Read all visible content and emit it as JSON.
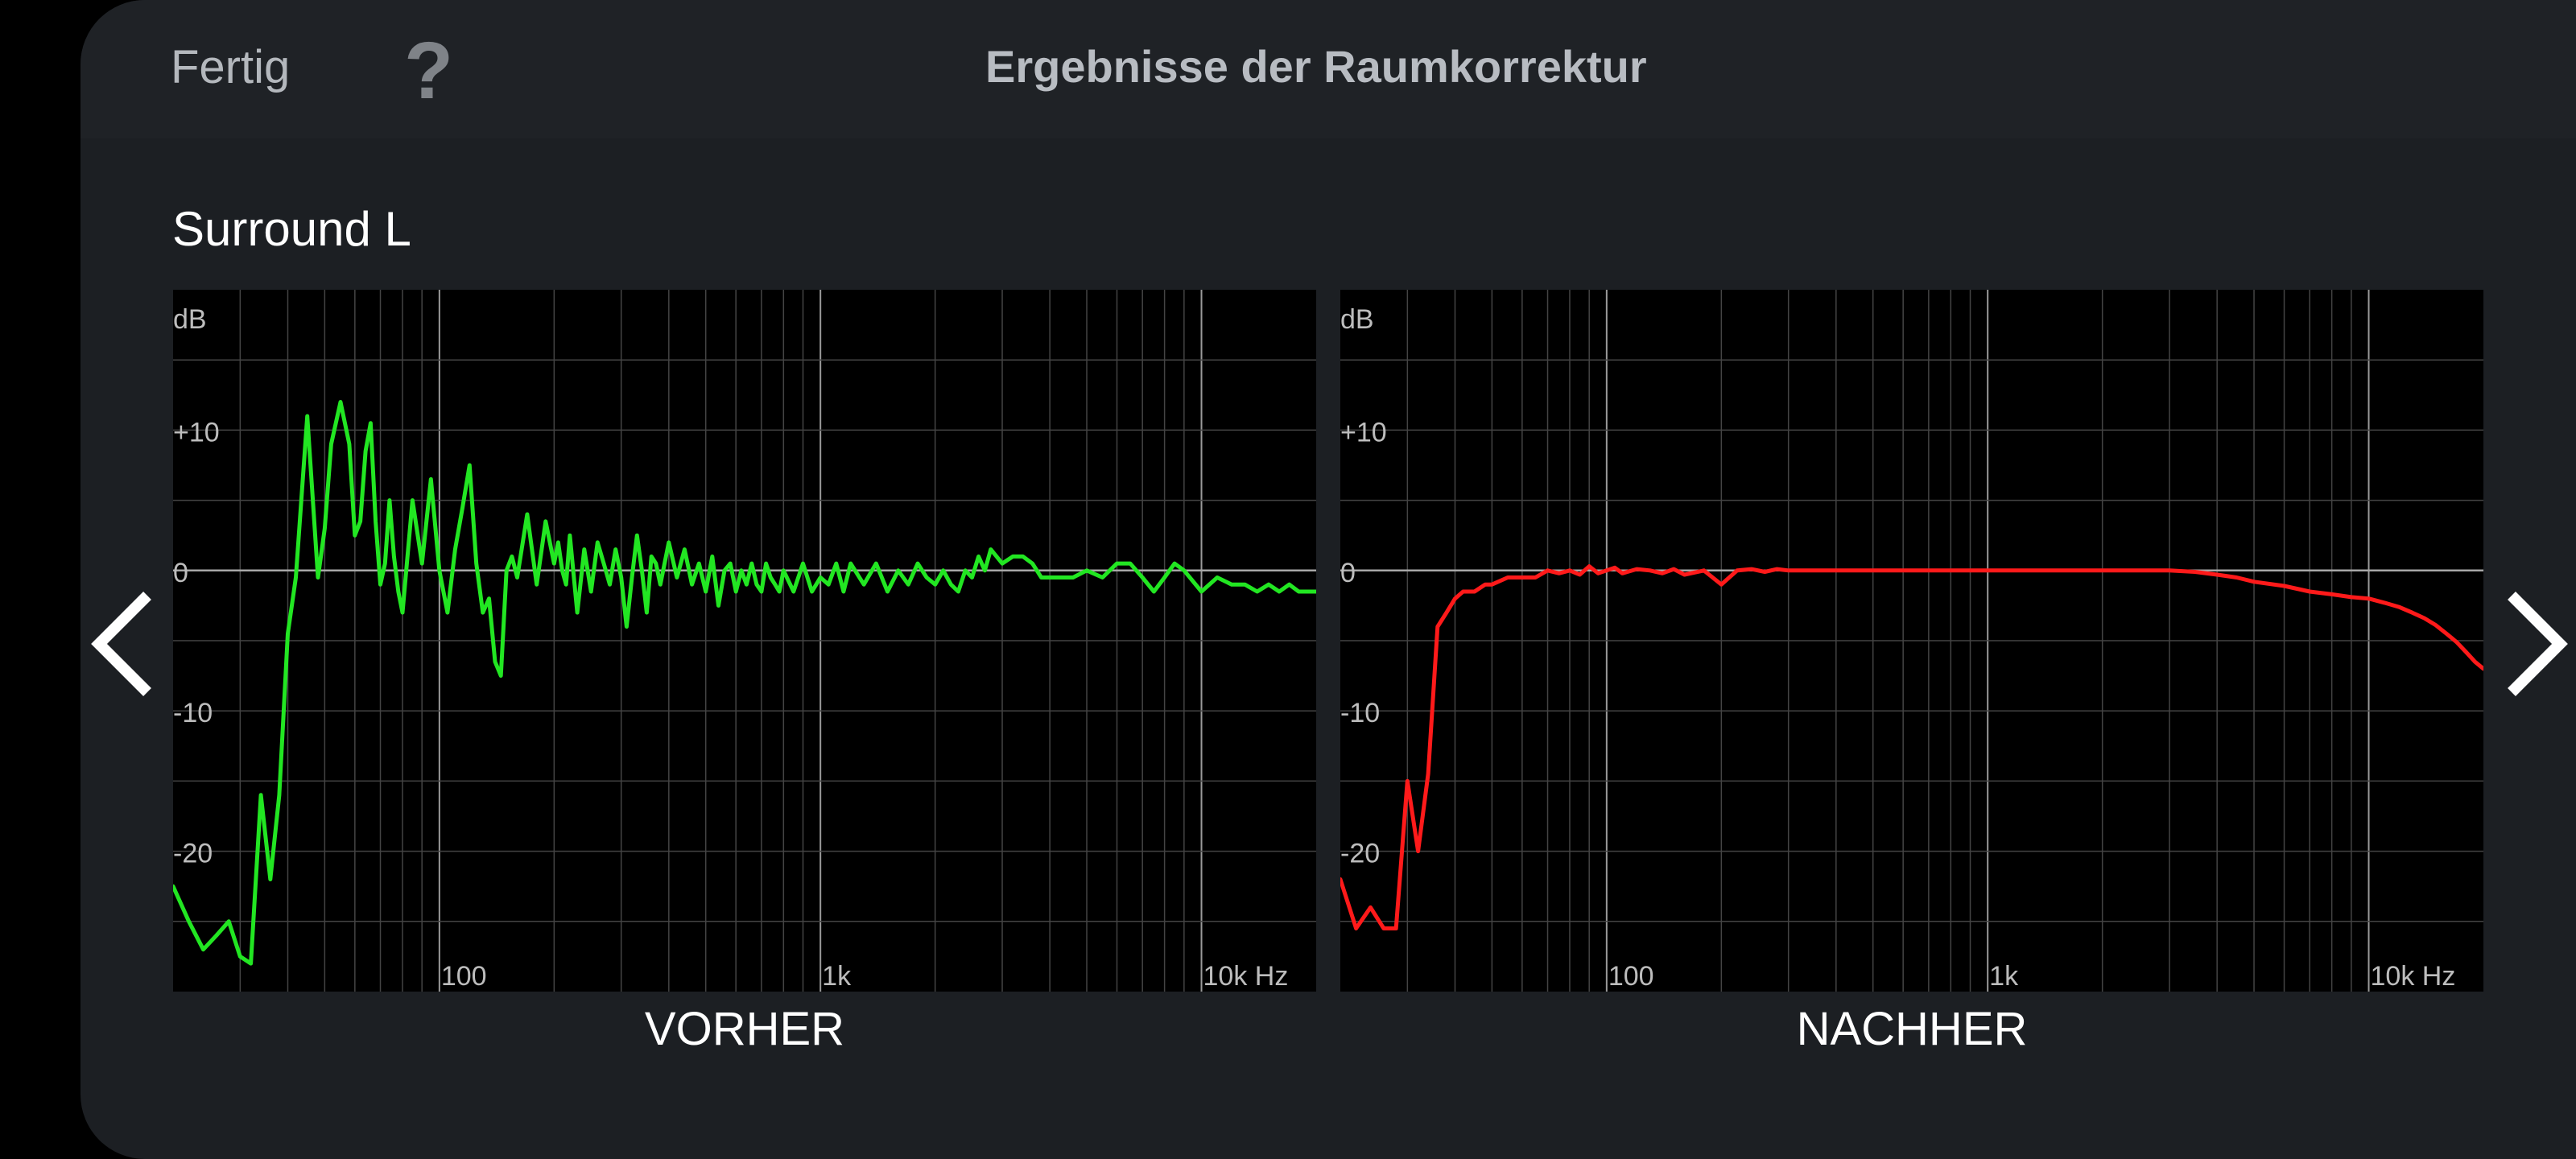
{
  "header": {
    "done_label": "Fertig",
    "help_label": "?",
    "title": "Ergebnisse der Raumkorrektur"
  },
  "channel_name": "Surround L",
  "icons": {
    "prev": "chevron-left-icon",
    "next": "chevron-right-icon"
  },
  "chart_data": [
    {
      "type": "line",
      "xlabel": "VORHER",
      "color": "#22e622",
      "x_scale": "log",
      "xlim": [
        20,
        20000
      ],
      "ylim": [
        -30,
        20
      ],
      "y_unit": "dB",
      "x_unit": "Hz",
      "yticks": [
        10,
        0,
        -10,
        -20
      ],
      "ytick_labels": [
        "+10",
        "0",
        "-10",
        "-20"
      ],
      "xticks": [
        100,
        1000,
        10000
      ],
      "xtick_labels": [
        "100",
        "1k",
        "10k Hz"
      ],
      "grid": true,
      "series": [
        {
          "x": [
            20,
            22,
            24,
            26,
            28,
            30,
            32,
            34,
            36,
            38,
            40,
            42,
            45,
            48,
            50,
            52,
            55,
            58,
            60,
            62,
            64,
            66,
            68,
            70,
            72,
            74,
            76,
            78,
            80,
            85,
            90,
            95,
            100,
            105,
            110,
            115,
            120,
            125,
            130,
            135,
            140,
            145,
            150,
            155,
            160,
            170,
            180,
            190,
            200,
            205,
            210,
            215,
            220,
            230,
            240,
            250,
            260,
            270,
            280,
            290,
            300,
            310,
            320,
            330,
            340,
            350,
            360,
            370,
            380,
            400,
            420,
            440,
            460,
            480,
            500,
            520,
            540,
            560,
            580,
            600,
            620,
            640,
            660,
            680,
            700,
            720,
            740,
            760,
            780,
            800,
            850,
            900,
            950,
            1000,
            1050,
            1100,
            1150,
            1200,
            1300,
            1400,
            1500,
            1600,
            1700,
            1800,
            1900,
            2000,
            2100,
            2200,
            2300,
            2400,
            2500,
            2600,
            2700,
            2800,
            2900,
            3000,
            3200,
            3400,
            3600,
            3800,
            4000,
            4300,
            4600,
            5000,
            5500,
            6000,
            6500,
            7000,
            7500,
            8000,
            8500,
            9000,
            10000,
            11000,
            12000,
            13000,
            14000,
            15000,
            16000,
            17000,
            18000,
            20000
          ],
          "y": [
            -22.5,
            -25,
            -27,
            -26,
            -25,
            -27.5,
            -28,
            -16,
            -22,
            -16,
            -4.5,
            -0.5,
            11,
            -0.5,
            3,
            9,
            12,
            9,
            2.5,
            3.5,
            8.5,
            10.5,
            3.5,
            -1,
            0.5,
            5,
            1,
            -1.5,
            -3,
            5,
            0.5,
            6.5,
            0,
            -3,
            1.5,
            4.5,
            7.5,
            0.5,
            -3,
            -2,
            -6.5,
            -7.5,
            0,
            1,
            -0.5,
            4,
            -1,
            3.5,
            0.5,
            2,
            0,
            -1,
            2.5,
            -3,
            1.5,
            -1.5,
            2,
            0.5,
            -1,
            1.5,
            -0.5,
            -4,
            -0.5,
            2.5,
            0,
            -3,
            1,
            0.5,
            -1,
            2,
            -0.5,
            1.5,
            -1,
            0.5,
            -1.5,
            1,
            -2.5,
            0,
            0.5,
            -1.5,
            0,
            -1,
            0.5,
            -1,
            -1.5,
            0.5,
            -0.5,
            -1,
            -1.5,
            0,
            -1.5,
            0.5,
            -1.5,
            -0.5,
            -1,
            0.5,
            -1.5,
            0.5,
            -1,
            0.5,
            -1.5,
            0,
            -1,
            0.5,
            -0.5,
            -1,
            0,
            -1,
            -1.5,
            0,
            -0.5,
            1,
            0,
            1.5,
            1,
            0.5,
            1,
            1,
            0.5,
            -0.5,
            -0.5,
            -0.5,
            -0.5,
            0,
            -0.5,
            0.5,
            0.5,
            -0.5,
            -1.5,
            -0.5,
            0.5,
            0,
            -1.5,
            -0.5,
            -1,
            -1,
            -1.5,
            -1,
            -1.5,
            -1,
            -1.5,
            -1.5
          ]
        }
      ]
    },
    {
      "type": "line",
      "xlabel": "NACHHER",
      "color": "#ff1a1a",
      "x_scale": "log",
      "xlim": [
        20,
        20000
      ],
      "ylim": [
        -30,
        20
      ],
      "y_unit": "dB",
      "x_unit": "Hz",
      "yticks": [
        10,
        0,
        -10,
        -20
      ],
      "ytick_labels": [
        "+10",
        "0",
        "-10",
        "-20"
      ],
      "xticks": [
        100,
        1000,
        10000
      ],
      "xtick_labels": [
        "100",
        "1k",
        "10k Hz"
      ],
      "grid": true,
      "series": [
        {
          "x": [
            20,
            22,
            24,
            26,
            28,
            30,
            32,
            34,
            36,
            38,
            40,
            42,
            45,
            48,
            50,
            55,
            60,
            65,
            70,
            75,
            80,
            85,
            90,
            95,
            100,
            105,
            110,
            120,
            130,
            140,
            150,
            160,
            180,
            200,
            220,
            240,
            260,
            280,
            300,
            350,
            400,
            450,
            500,
            600,
            700,
            800,
            1000,
            1200,
            1500,
            2000,
            2500,
            3000,
            3500,
            4000,
            4500,
            5000,
            6000,
            7000,
            8000,
            9000,
            10000,
            11000,
            12000,
            13000,
            14000,
            15000,
            16000,
            17000,
            18000,
            19000,
            20000
          ],
          "y": [
            -22,
            -25.5,
            -24,
            -25.5,
            -25.5,
            -15,
            -20,
            -14.5,
            -4,
            -3,
            -2,
            -1.5,
            -1.5,
            -1,
            -1,
            -0.5,
            -0.5,
            -0.5,
            0,
            -0.2,
            0,
            -0.3,
            0.3,
            -0.2,
            0,
            0.2,
            -0.2,
            0.1,
            0,
            -0.2,
            0.1,
            -0.3,
            0,
            -1,
            0,
            0.1,
            -0.1,
            0.1,
            0,
            0,
            0,
            0,
            0,
            0,
            0,
            0,
            0,
            0,
            0,
            0,
            0,
            0,
            -0.1,
            -0.3,
            -0.5,
            -0.8,
            -1.1,
            -1.5,
            -1.7,
            -1.9,
            -2,
            -2.3,
            -2.6,
            -3,
            -3.4,
            -3.9,
            -4.5,
            -5.1,
            -5.8,
            -6.5,
            -7
          ]
        }
      ]
    }
  ]
}
